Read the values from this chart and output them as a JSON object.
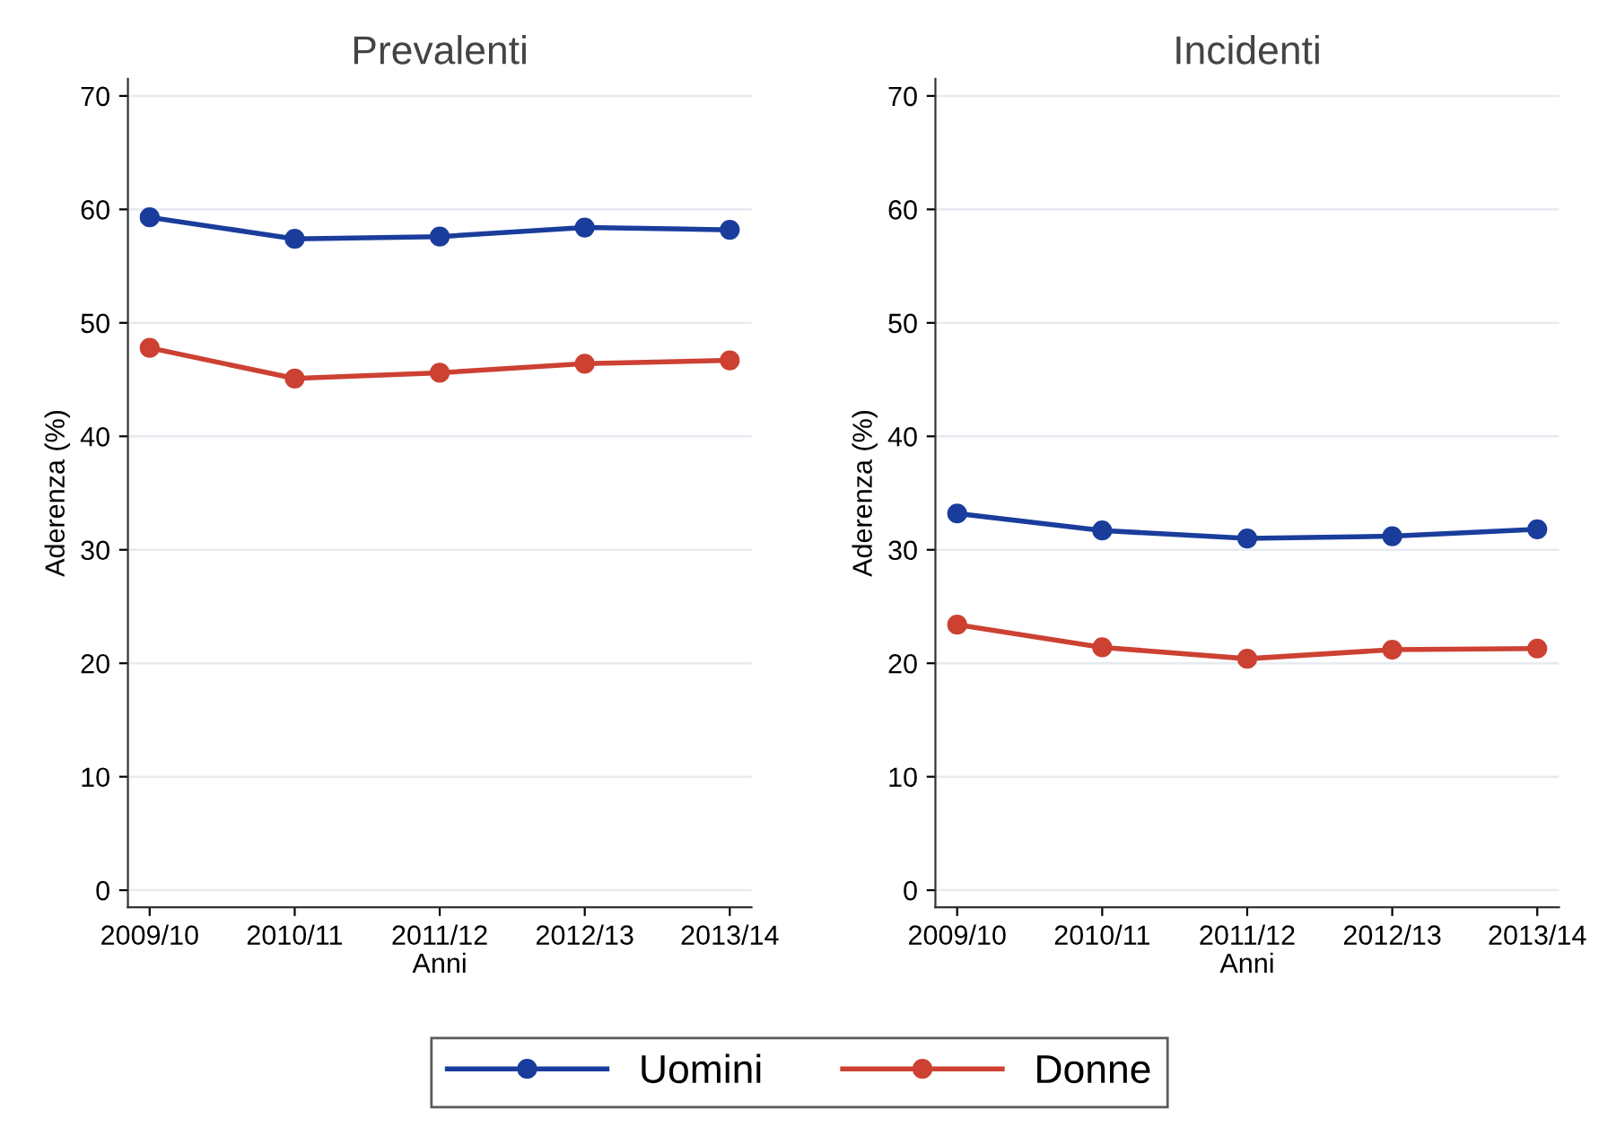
{
  "chart_data": [
    {
      "type": "line",
      "title": "Prevalenti",
      "xlabel": "Anni",
      "ylabel": "Aderenza (%)",
      "categories": [
        "2009/10",
        "2010/11",
        "2011/12",
        "2012/13",
        "2013/14"
      ],
      "ylim": [
        -1.5,
        71.5
      ],
      "yticks": [
        0,
        10,
        20,
        30,
        40,
        50,
        60,
        70
      ],
      "grid": "y",
      "marker": "circle",
      "line_style": "solid",
      "legend": "bottom",
      "series": [
        {
          "name": "Uomini",
          "color": "#1a3d9c",
          "values": [
            59.3,
            57.4,
            57.6,
            58.4,
            58.2
          ]
        },
        {
          "name": "Donne",
          "color": "#cc4132",
          "values": [
            47.8,
            45.1,
            45.6,
            46.4,
            46.7
          ]
        }
      ]
    },
    {
      "type": "line",
      "title": "Incidenti",
      "xlabel": "Anni",
      "ylabel": "Aderenza (%)",
      "categories": [
        "2009/10",
        "2010/11",
        "2011/12",
        "2012/13",
        "2013/14"
      ],
      "ylim": [
        -1.5,
        71.5
      ],
      "yticks": [
        0,
        10,
        20,
        30,
        40,
        50,
        60,
        70
      ],
      "grid": "y",
      "marker": "circle",
      "line_style": "solid",
      "legend": "bottom",
      "series": [
        {
          "name": "Uomini",
          "color": "#1a3d9c",
          "values": [
            33.2,
            31.7,
            31.0,
            31.2,
            31.8
          ]
        },
        {
          "name": "Donne",
          "color": "#cc4132",
          "values": [
            23.4,
            21.4,
            20.4,
            21.2,
            21.3
          ]
        }
      ]
    }
  ]
}
